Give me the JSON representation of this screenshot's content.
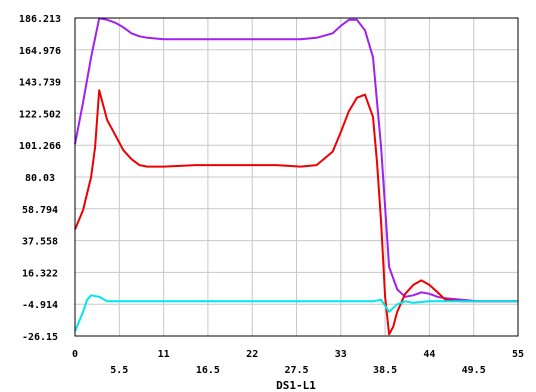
{
  "chart_data": {
    "type": "line",
    "title": "",
    "xlabel": "DS1-L1",
    "ylabel": "",
    "xlim": [
      0,
      55
    ],
    "ylim": [
      -26.15,
      186.213
    ],
    "grid": true,
    "legend": "none",
    "x_ticks_upper": [
      "0",
      "11",
      "22",
      "33",
      "44",
      "55"
    ],
    "x_ticks_lower": [
      "5.5",
      "16.5",
      "27.5",
      "38.5",
      "49.5"
    ],
    "y_ticks": [
      "186.213",
      "164.976",
      "143.739",
      "122.502",
      "101.266",
      "80.03",
      "58.794",
      "37.558",
      "16.322",
      "-4.914",
      "-26.15"
    ],
    "series": [
      {
        "color": "#a020f0",
        "x": [
          0,
          1,
          2,
          3,
          4,
          5,
          6,
          7,
          8,
          9,
          11,
          15,
          20,
          25,
          28,
          30,
          32,
          33,
          34,
          35,
          36,
          37,
          38,
          38.5,
          39,
          40,
          41,
          42,
          43,
          44,
          45,
          46,
          48,
          50,
          52,
          55
        ],
        "y": [
          102,
          130,
          160,
          186,
          185,
          183,
          180,
          176,
          174,
          173,
          172,
          172,
          172,
          172,
          172,
          173,
          176,
          181,
          185,
          185,
          178,
          160,
          100,
          60,
          20,
          5,
          0,
          1,
          3,
          2,
          0,
          -1,
          -2,
          -3,
          -3,
          -3
        ]
      },
      {
        "color": "#ee0000",
        "x": [
          0,
          1,
          2,
          2.5,
          3,
          4,
          5,
          6,
          7,
          8,
          9,
          11,
          15,
          20,
          25,
          28,
          30,
          32,
          33,
          34,
          35,
          36,
          37,
          37.5,
          38,
          38.5,
          39,
          39.5,
          40,
          41,
          42,
          43,
          44,
          45,
          46,
          48,
          50,
          52,
          55
        ],
        "y": [
          45,
          58,
          80,
          100,
          138,
          118,
          108,
          98,
          92,
          88,
          87,
          87,
          88,
          88,
          88,
          87,
          88,
          97,
          110,
          124,
          133,
          135,
          120,
          90,
          50,
          0,
          -25,
          -20,
          -10,
          2,
          8,
          11,
          8,
          3,
          -2,
          -3,
          -3,
          -3,
          -3
        ]
      },
      {
        "color": "#00e5ee",
        "x": [
          0,
          1,
          1.5,
          2,
          3,
          4,
          5,
          10,
          20,
          30,
          35,
          36,
          37,
          38,
          39,
          40,
          41,
          42,
          44,
          46,
          48,
          50,
          52,
          55
        ],
        "y": [
          -23,
          -10,
          -2,
          1,
          0,
          -3,
          -3,
          -3,
          -3,
          -3,
          -3,
          -3,
          -3,
          -2,
          -10,
          -5,
          -3,
          -4,
          -3,
          -3,
          -3,
          -3,
          -3,
          -3
        ]
      }
    ]
  }
}
